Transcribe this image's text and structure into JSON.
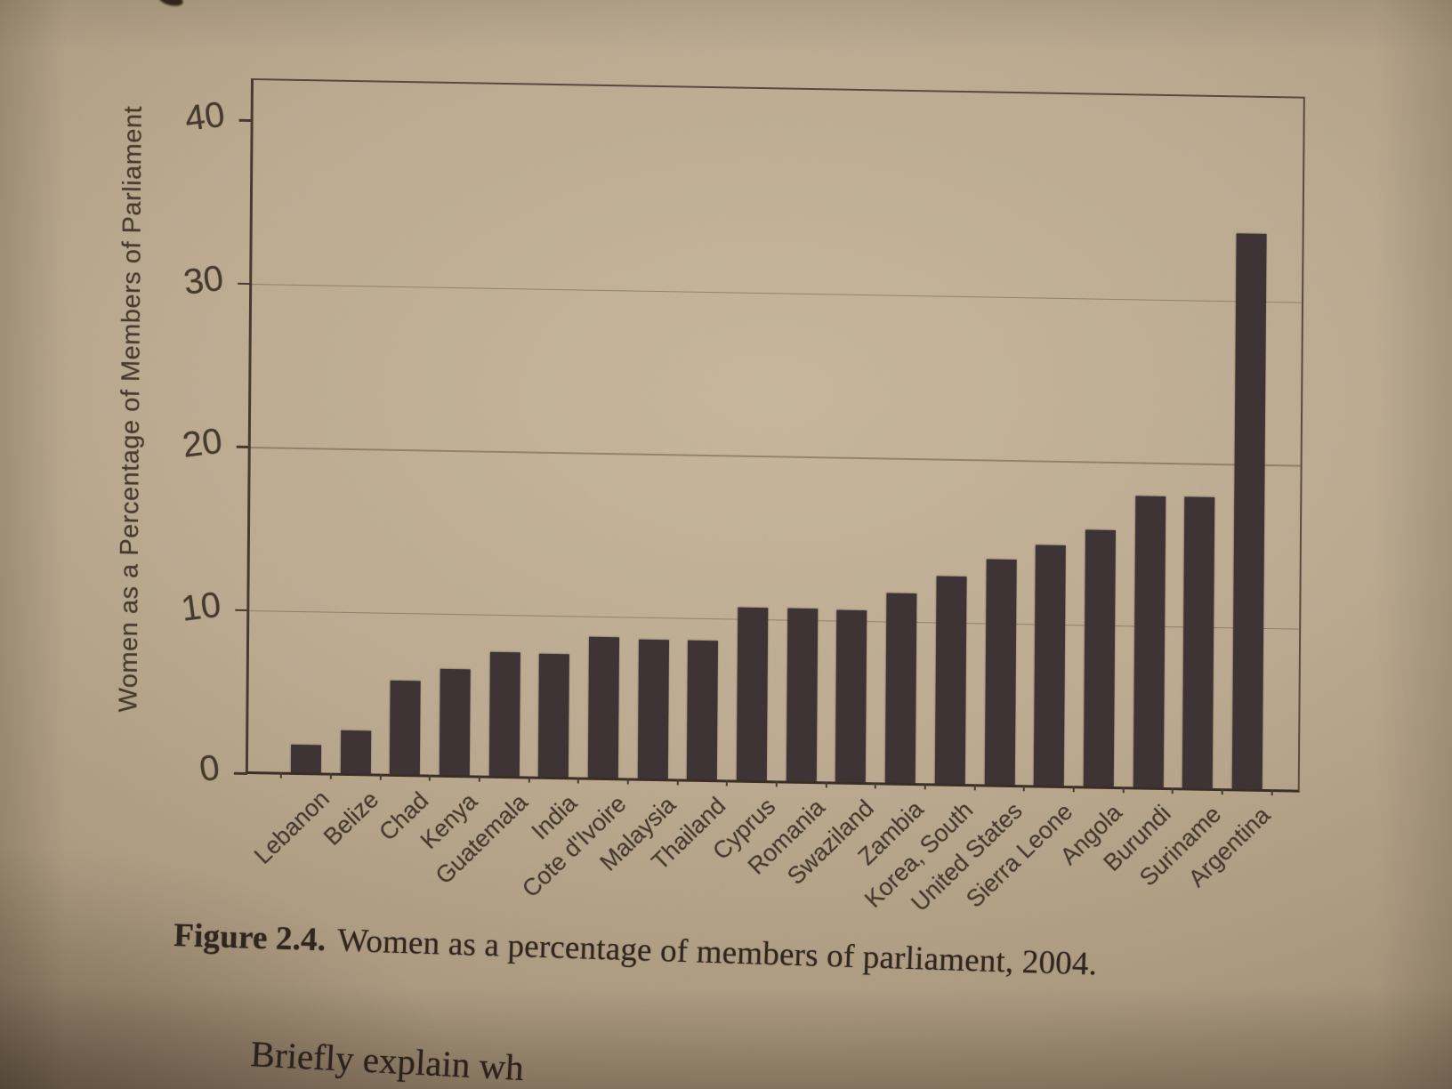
{
  "page": {
    "caption": {
      "label": "Figure 2.4.",
      "text": "Women as a percentage of members of parliament, 2004."
    },
    "bottom_text_fragment": "Briefly explain wh"
  },
  "chart_data": {
    "type": "bar",
    "title": "Women as a percentage of members of parliament, 2004",
    "ylabel": "Women as a Percentage of Members of Parliament",
    "xlabel": "",
    "ylim": [
      0,
      40
    ],
    "yticks": [
      0,
      10,
      20,
      30,
      40
    ],
    "gridlines": [
      10,
      20,
      30
    ],
    "grid": "horizontal",
    "legend": "none",
    "categories": [
      "Lebanon",
      "Belize",
      "Chad",
      "Kenya",
      "Guatemala",
      "India",
      "Cote d'Ivoire",
      "Malaysia",
      "Thailand",
      "Cyprus",
      "Romania",
      "Swaziland",
      "Zambia",
      "Korea, South",
      "United States",
      "Sierra Leone",
      "Angola",
      "Burundi",
      "Suriname",
      "Argentina"
    ],
    "values": [
      1.7,
      2.6,
      5.7,
      6.5,
      7.6,
      7.5,
      8.6,
      8.5,
      8.5,
      10.6,
      10.6,
      10.5,
      11.6,
      12.7,
      13.8,
      14.7,
      15.7,
      17.8,
      17.8,
      34.0
    ],
    "bar_color": "#3e3435"
  },
  "colors": {
    "paper": "#bdac92",
    "bar": "#3e3435",
    "frame": "#5a4a3c",
    "ink": "#463a2e",
    "caption_ink": "#2f261e"
  }
}
